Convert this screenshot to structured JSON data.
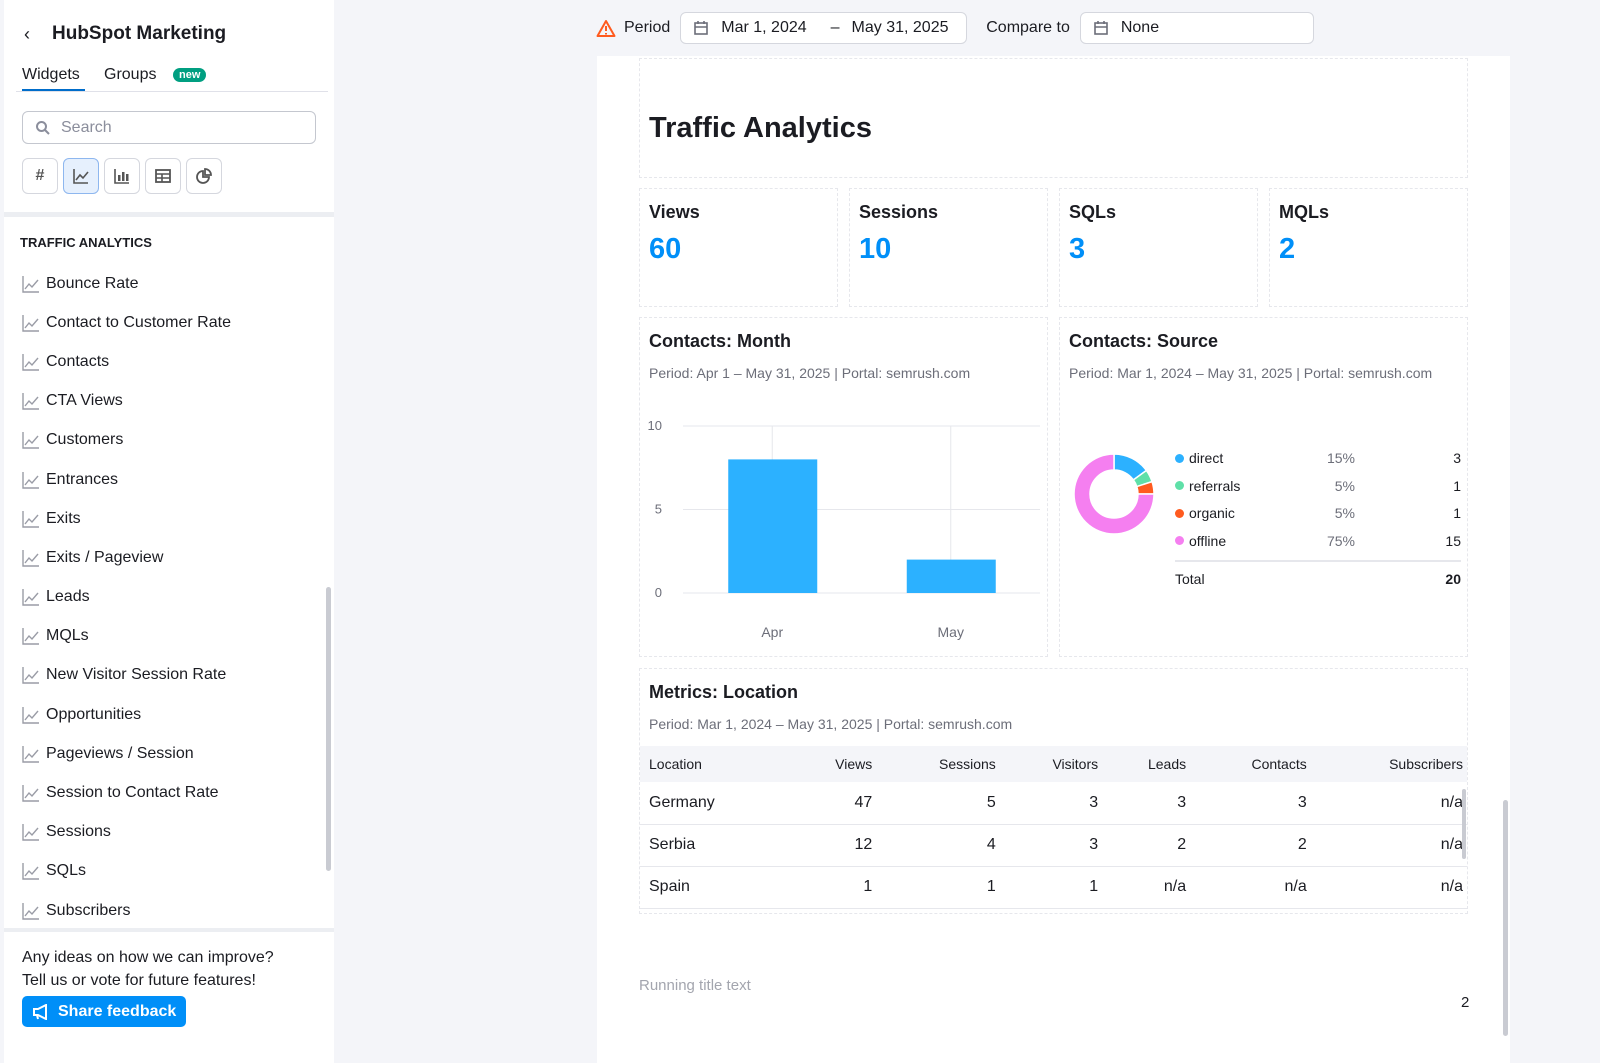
{
  "sidebar": {
    "title": "HubSpot Marketing",
    "tabs": [
      "Widgets",
      "Groups"
    ],
    "badge": "new",
    "search_placeholder": "Search",
    "filters": [
      "number-icon",
      "line-chart-icon",
      "bar-chart-icon",
      "table-icon",
      "pie-chart-icon"
    ],
    "active_filter": "line-chart-icon",
    "section": "TRAFFIC ANALYTICS",
    "items": [
      "Bounce Rate",
      "Contact to Customer Rate",
      "Contacts",
      "CTA Views",
      "Customers",
      "Entrances",
      "Exits",
      "Exits / Pageview",
      "Leads",
      "MQLs",
      "New Visitor Session Rate",
      "Opportunities",
      "Pageviews / Session",
      "Session to Contact Rate",
      "Sessions",
      "SQLs",
      "Subscribers"
    ],
    "feedback_text_1": "Any ideas on how we can improve?",
    "feedback_text_2": "Tell us or vote for future features!",
    "feedback_button": "Share feedback"
  },
  "topbar": {
    "period_label": "Period",
    "period_start": "Mar 1, 2024",
    "period_sep": "–",
    "period_end": "May 31, 2025",
    "compare_label": "Compare to",
    "compare_value": "None"
  },
  "report": {
    "title": "Traffic Analytics",
    "kpis": [
      {
        "label": "Views",
        "value": "60"
      },
      {
        "label": "Sessions",
        "value": "10"
      },
      {
        "label": "SQLs",
        "value": "3"
      },
      {
        "label": "MQLs",
        "value": "2"
      }
    ],
    "footer_text": "Running title text",
    "page_number": "2"
  },
  "colors": {
    "accent": "#008ff8",
    "bar": "#2cb1ff",
    "direct": "#2cb1ff",
    "referrals": "#5fe0a8",
    "organic": "#ff5b1f",
    "offline": "#f57ff0"
  },
  "chart_data": [
    {
      "type": "bar",
      "title": "Contacts: Month",
      "subtitle": "Period: Apr 1 – May 31, 2025 | Portal: semrush.com",
      "categories": [
        "Apr",
        "May"
      ],
      "values": [
        8,
        2
      ],
      "ylim": [
        0,
        10
      ],
      "yticks": [
        "0",
        "5",
        "10"
      ],
      "grid": true
    },
    {
      "type": "pie",
      "title": "Contacts: Source",
      "subtitle": "Period: Mar 1, 2024 – May 31, 2025 | Portal: semrush.com",
      "donut": true,
      "slices": [
        {
          "name": "direct",
          "percent": "15%",
          "value": 3
        },
        {
          "name": "referrals",
          "percent": "5%",
          "value": 1
        },
        {
          "name": "organic",
          "percent": "5%",
          "value": 1
        },
        {
          "name": "offline",
          "percent": "75%",
          "value": 15
        }
      ],
      "total_label": "Total",
      "total": "20"
    }
  ],
  "location": {
    "title": "Metrics: Location",
    "subtitle": "Period: Mar 1, 2024 – May 31, 2025 | Portal: semrush.com",
    "columns": [
      "Location",
      "Views",
      "Sessions",
      "Visitors",
      "Leads",
      "Contacts",
      "Subscribers"
    ],
    "rows": [
      [
        "Germany",
        "47",
        "5",
        "3",
        "3",
        "3",
        "n/a"
      ],
      [
        "Serbia",
        "12",
        "4",
        "3",
        "2",
        "2",
        "n/a"
      ],
      [
        "Spain",
        "1",
        "1",
        "1",
        "n/a",
        "n/a",
        "n/a"
      ]
    ]
  }
}
